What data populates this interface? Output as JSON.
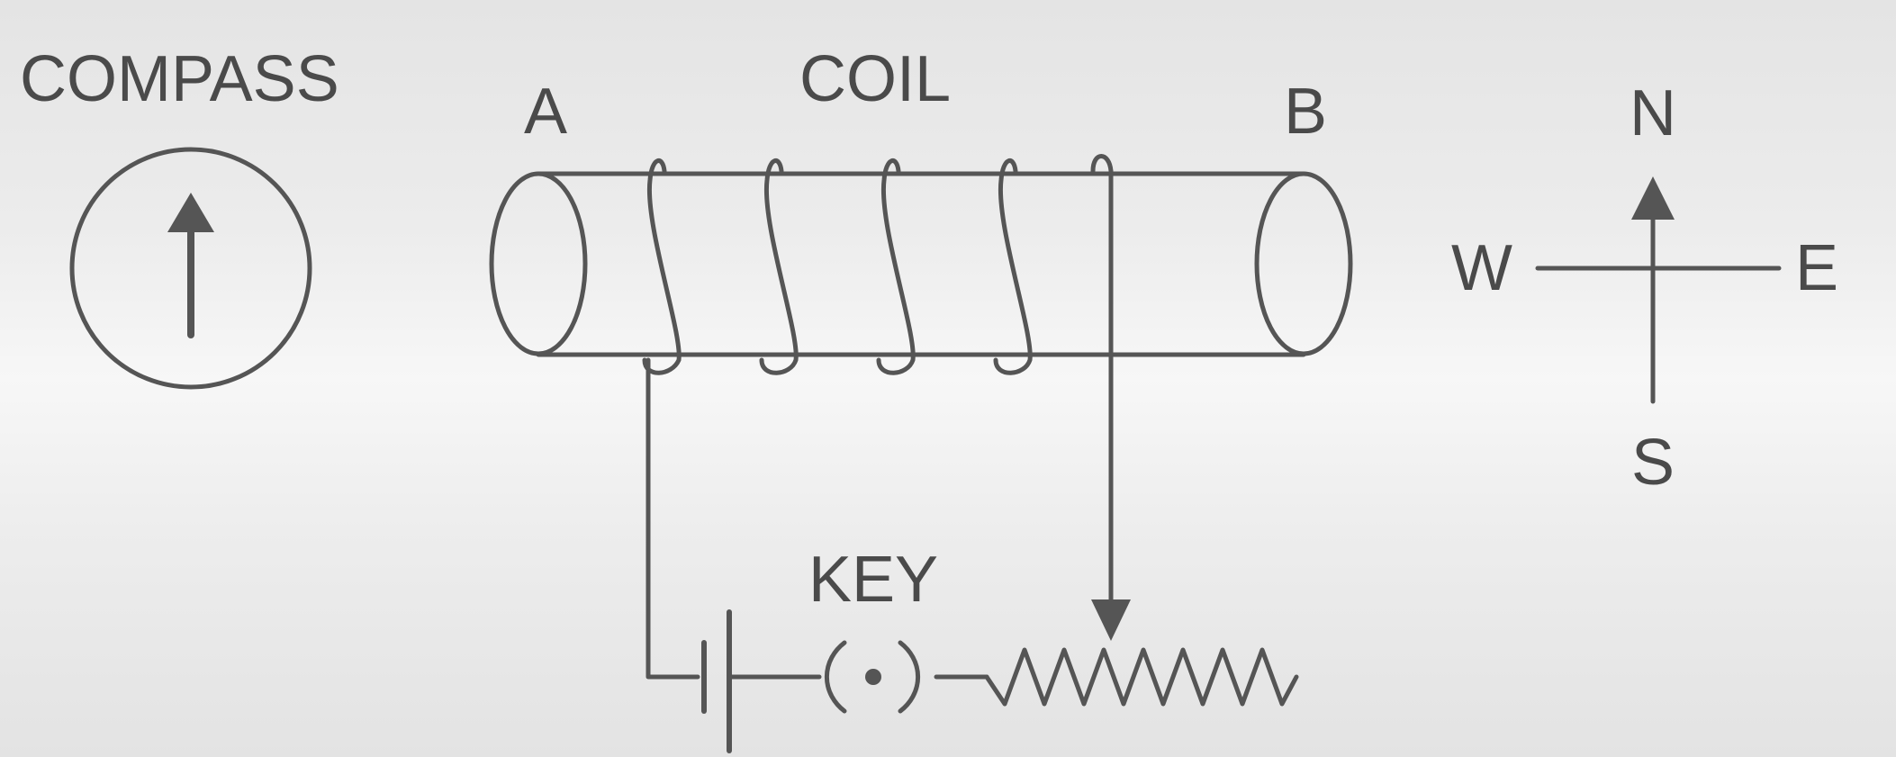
{
  "labels": {
    "compass": "COMPASS",
    "coil": "COIL",
    "end_a": "A",
    "end_b": "B",
    "key": "KEY",
    "north": "N",
    "south": "S",
    "east": "E",
    "west": "W"
  },
  "colors": {
    "ink": "#555555",
    "text": "#4a4a4a"
  }
}
